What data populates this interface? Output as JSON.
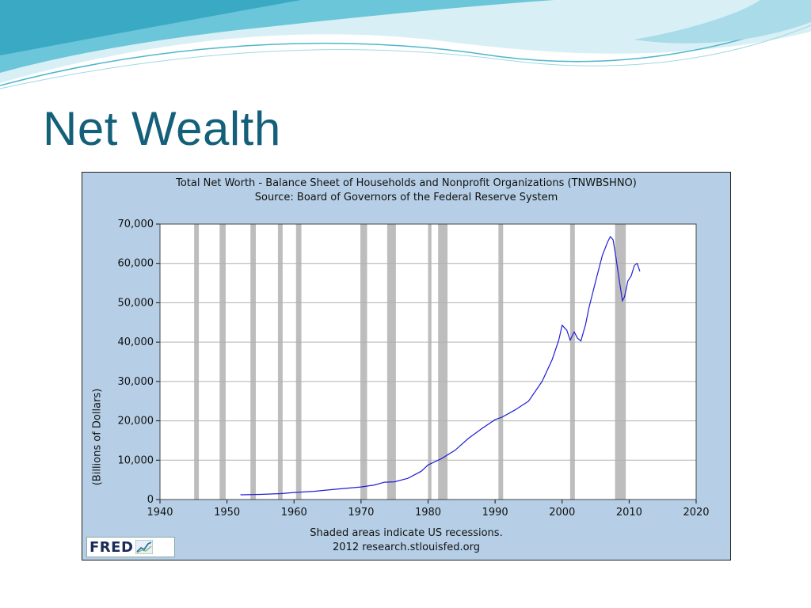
{
  "slide": {
    "title": "Net Wealth"
  },
  "colors": {
    "title": "#14607a",
    "frame_bg": "#b6cfe6",
    "plot_bg": "#ffffff",
    "line": "#1f1fd6",
    "recession": "#bdbdbd",
    "grid": "#b0b0b0",
    "wave_teal": "#5fc2d6",
    "wave_light": "#bfe6ef"
  },
  "chart_data": {
    "type": "line",
    "title": "Total Net Worth - Balance Sheet of Households and Nonprofit Organizations (TNWBSHNO)",
    "subtitle": "Source: Board of Governors of the Federal Reserve System",
    "xlabel": "",
    "ylabel": "(Billions of Dollars)",
    "xlim": [
      1940,
      2020
    ],
    "ylim": [
      0,
      70000
    ],
    "x_ticks": [
      1940,
      1950,
      1960,
      1970,
      1980,
      1990,
      2000,
      2010,
      2020
    ],
    "x_tick_labels": [
      "1940",
      "1950",
      "1960",
      "1970",
      "1980",
      "1990",
      "2000",
      "2010",
      "2020"
    ],
    "y_ticks": [
      0,
      10000,
      20000,
      30000,
      40000,
      50000,
      60000,
      70000
    ],
    "y_tick_labels": [
      "0",
      "10,000",
      "20,000",
      "30,000",
      "40,000",
      "50,000",
      "60,000",
      "70,000"
    ],
    "grid": true,
    "recessions": [
      [
        1945.1,
        1945.8
      ],
      [
        1948.9,
        1949.8
      ],
      [
        1953.5,
        1954.3
      ],
      [
        1957.6,
        1958.3
      ],
      [
        1960.3,
        1961.1
      ],
      [
        1969.9,
        1970.9
      ],
      [
        1973.9,
        1975.2
      ],
      [
        1980.0,
        1980.5
      ],
      [
        1981.5,
        1982.9
      ],
      [
        1990.5,
        1991.2
      ],
      [
        2001.2,
        2001.9
      ],
      [
        2007.9,
        2009.5
      ]
    ],
    "series": [
      {
        "name": "TNWBSHNO",
        "x": [
          1952.0,
          1955.0,
          1958.0,
          1960.0,
          1963.0,
          1966.0,
          1968.0,
          1970.0,
          1972.0,
          1973.5,
          1975.0,
          1977.0,
          1979.0,
          1980.0,
          1982.0,
          1984.0,
          1986.0,
          1988.0,
          1990.0,
          1991.0,
          1993.0,
          1995.0,
          1997.0,
          1998.5,
          1999.5,
          2000.0,
          2000.7,
          2001.2,
          2001.8,
          2002.3,
          2002.8,
          2003.5,
          2004.0,
          2005.0,
          2006.0,
          2006.8,
          2007.2,
          2007.6,
          2008.0,
          2008.5,
          2009.0,
          2009.3,
          2009.8,
          2010.3,
          2010.8,
          2011.2,
          2011.6
        ],
        "values": [
          1200,
          1300,
          1500,
          1800,
          2100,
          2600,
          2900,
          3200,
          3700,
          4400,
          4500,
          5400,
          7200,
          8800,
          10400,
          12500,
          15500,
          18000,
          20300,
          20900,
          22800,
          25000,
          30000,
          35500,
          40500,
          44300,
          43000,
          40500,
          42600,
          41000,
          40300,
          44500,
          48700,
          55500,
          62000,
          65500,
          66800,
          66000,
          62000,
          56000,
          50500,
          51500,
          55500,
          56800,
          59500,
          60000,
          58000
        ]
      }
    ],
    "footnote": "Shaded areas indicate US recessions.",
    "credit": "2012 research.stlouisfed.org"
  },
  "logo": {
    "text": "FRED"
  }
}
